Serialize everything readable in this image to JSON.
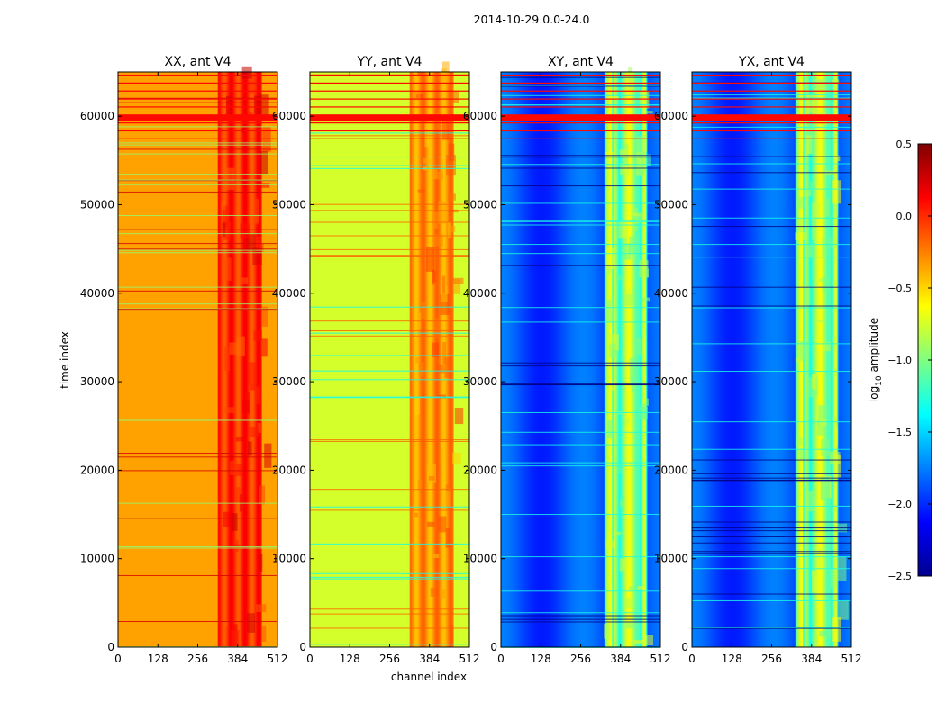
{
  "figure": {
    "suptitle": "2014-10-29 0.0-24.0",
    "xlabel": "channel index",
    "ylabel": "time index",
    "colorbar_label_prefix": "log",
    "colorbar_label_sub": "10",
    "colorbar_label_suffix": " amplitude"
  },
  "chart_data": {
    "type": "heatmap",
    "x_range": [
      0,
      512
    ],
    "y_range": [
      0,
      65000
    ],
    "x_ticks": [
      "0",
      "128",
      "256",
      "384",
      "512"
    ],
    "x_tick_values": [
      0,
      128,
      256,
      384,
      512
    ],
    "y_ticks": [
      "0",
      "10000",
      "20000",
      "30000",
      "40000",
      "50000",
      "60000"
    ],
    "y_tick_values": [
      0,
      10000,
      20000,
      30000,
      40000,
      50000,
      60000
    ],
    "colorbar": {
      "min": -2.5,
      "max": 0.5,
      "ticks": [
        "0.5",
        "0.0",
        "−0.5",
        "−1.0",
        "−1.5",
        "−2.0",
        "−2.5"
      ],
      "tick_values": [
        0.5,
        0.0,
        -0.5,
        -1.0,
        -1.5,
        -2.0,
        -2.5
      ],
      "colormap": "jet"
    },
    "panels": [
      {
        "title": "XX, ant V4",
        "kind": "auto",
        "base_level": -0.35,
        "band_center": 370,
        "band_level": 0.0
      },
      {
        "title": "YY, ant V4",
        "kind": "auto",
        "base_level": -0.75,
        "band_center": 390,
        "band_level": -0.3
      },
      {
        "title": "XY, ant V4",
        "kind": "cross",
        "base_level": -1.9,
        "band_center": 420,
        "band_level": -0.9
      },
      {
        "title": "YX, ant V4",
        "kind": "cross",
        "base_level": -1.9,
        "band_center": 420,
        "band_level": -0.9
      }
    ],
    "flagged_rows": [
      59800
    ],
    "flagged_level": 0.1
  }
}
